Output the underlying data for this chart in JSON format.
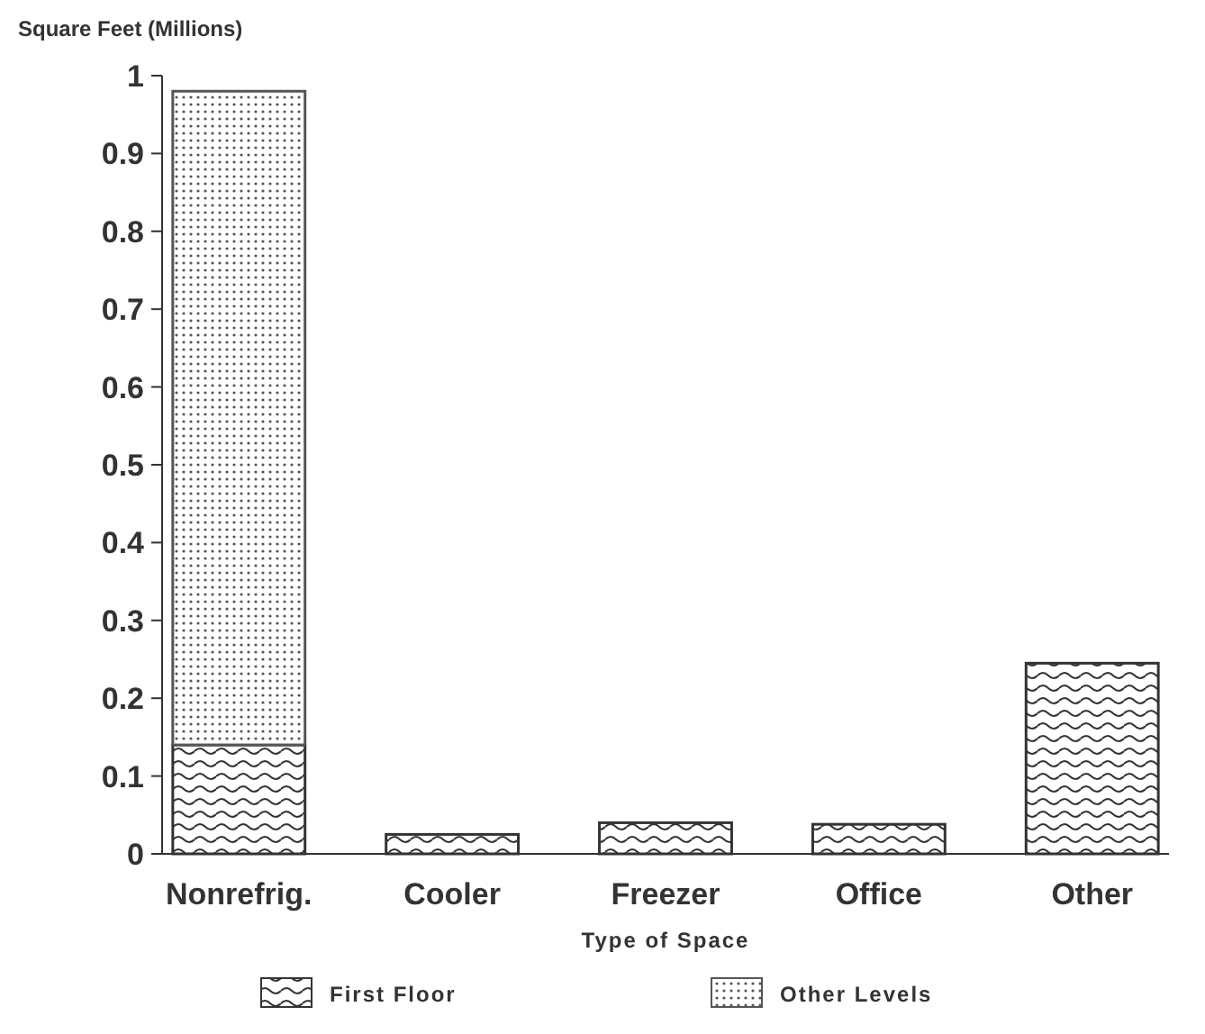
{
  "chart_data": {
    "type": "bar",
    "stacked": true,
    "ylabel": "Square Feet (Millions)",
    "xlabel": "Type of Space",
    "categories": [
      "Nonrefrig.",
      "Cooler",
      "Freezer",
      "Office",
      "Other"
    ],
    "series": [
      {
        "name": "First Floor",
        "color": "#333333",
        "values": [
          0.14,
          0.025,
          0.04,
          0.038,
          0.245
        ]
      },
      {
        "name": "Other Levels",
        "color": "#555555",
        "values": [
          0.84,
          0,
          0,
          0,
          0
        ]
      }
    ],
    "ylim": [
      0,
      1
    ],
    "yticks": [
      0,
      0.1,
      0.2,
      0.3,
      0.4,
      0.5,
      0.6,
      0.7,
      0.8,
      0.9,
      1
    ],
    "grid": false,
    "legend": "bottom"
  }
}
